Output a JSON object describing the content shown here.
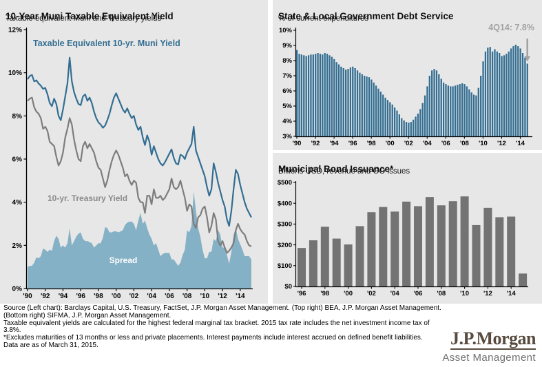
{
  "colors": {
    "panel_bg": "#e7e7e7",
    "muni_blue": "#336e92",
    "spread_fill": "#85b1c6",
    "treasury_gray": "#7d7d7d",
    "issuance_bar_gray": "#737373",
    "annotation_gray": "#a3a3a3",
    "axis": "#000000",
    "logo_brown": "#584a3e",
    "logo_division_gray": "#6e6e6e"
  },
  "left_chart": {
    "title": "10-Year Muni Taxable Equivalent Yield",
    "subtitle": "Taxable equivalent Muni and Treasury yields"
  },
  "top_right_chart": {
    "title": "State & Local Government Debt Service",
    "subtitle": "% of current expenditures",
    "annotation": "4Q14: 7.8%"
  },
  "bottom_right_chart": {
    "title": "Municipal Bond Issuance*",
    "subtitle": "Billions USD, revenue and GO issues"
  },
  "footer": {
    "lines": [
      "Source (Left chart): Barclays Capital, U.S. Treasury, FactSet, J.P. Morgan Asset Management. (Top right) BEA, J.P. Morgan Asset Management.",
      "(Bottom right) SIFMA, J.P. Morgan Asset Management.",
      "Taxable equivalent yields are calculated for the highest federal marginal tax bracket. 2015 tax rate includes the net investment income tax of 3.8%.",
      "*Excludes maturities of 13 months or less and private placements. Interest payments include interest accrued on defined benefit liabilities.",
      "Data are as of March 31, 2015."
    ]
  },
  "logo": {
    "brand": "J.P.Morgan",
    "division": "Asset Management"
  },
  "chart_data": [
    {
      "id": "taxable_equivalent_yield",
      "type": "line",
      "title": "10-Year Muni Taxable Equivalent Yield",
      "subtitle": "Taxable equivalent Muni and Treasury yields",
      "x_start": 1990,
      "x_step": 0.25,
      "xticks": [
        "'90",
        "'92",
        "'94",
        "'96",
        "'98",
        "'00",
        "'02",
        "'04",
        "'06",
        "'08",
        "'10",
        "'12",
        "'14"
      ],
      "xtick_years": [
        1990,
        1992,
        1994,
        1996,
        1998,
        2000,
        2002,
        2004,
        2006,
        2008,
        2010,
        2012,
        2014
      ],
      "ylim": [
        0,
        12
      ],
      "ytick_values": [
        0,
        2,
        4,
        6,
        8,
        10,
        12
      ],
      "yticks": [
        "0%",
        "2%",
        "4%",
        "6%",
        "8%",
        "10%",
        "12%"
      ],
      "grid": false,
      "series": [
        {
          "name": "Taxable Equivalent 10-yr. Muni Yield",
          "style": "line",
          "color": "#336e92",
          "values": [
            9.7,
            9.85,
            9.9,
            9.6,
            9.65,
            9.5,
            9.4,
            9.25,
            9.3,
            9.0,
            8.6,
            8.45,
            8.8,
            8.55,
            8.0,
            7.8,
            8.3,
            8.9,
            9.5,
            10.7,
            9.6,
            9.1,
            8.8,
            8.55,
            8.5,
            8.9,
            9.0,
            8.7,
            8.85,
            8.6,
            8.2,
            7.9,
            7.7,
            7.6,
            7.45,
            7.55,
            7.8,
            8.1,
            8.5,
            8.85,
            9.05,
            8.8,
            8.55,
            8.3,
            8.15,
            8.35,
            8.1,
            7.9,
            8.0,
            7.6,
            7.35,
            7.5,
            7.0,
            6.65,
            7.1,
            6.8,
            6.2,
            6.6,
            6.3,
            6.0,
            5.8,
            5.7,
            5.85,
            6.05,
            6.25,
            6.45,
            6.05,
            5.8,
            5.75,
            6.2,
            6.15,
            6.0,
            6.3,
            6.5,
            6.7,
            7.5,
            6.4,
            6.1,
            5.8,
            5.5,
            5.2,
            4.7,
            4.3,
            4.6,
            5.8,
            5.4,
            4.9,
            4.5,
            4.1,
            3.8,
            3.2,
            2.9,
            3.6,
            4.6,
            5.5,
            5.3,
            4.8,
            4.4,
            4.0,
            3.7,
            3.5,
            3.3
          ]
        },
        {
          "name": "10-yr. Treasury Yield",
          "style": "line",
          "color": "#7d7d7d",
          "values": [
            8.7,
            8.8,
            8.85,
            8.4,
            8.2,
            8.1,
            7.9,
            7.4,
            7.5,
            7.3,
            6.8,
            6.7,
            6.6,
            6.1,
            5.7,
            5.9,
            6.3,
            7.0,
            7.4,
            7.9,
            7.6,
            6.9,
            6.4,
            6.0,
            5.9,
            6.6,
            6.8,
            6.5,
            6.7,
            6.5,
            6.3,
            5.9,
            5.6,
            5.5,
            5.1,
            4.7,
            5.0,
            5.5,
            5.9,
            6.2,
            6.4,
            6.2,
            5.9,
            5.6,
            5.2,
            5.3,
            5.0,
            4.8,
            5.0,
            4.9,
            4.2,
            4.0,
            4.0,
            3.5,
            4.3,
            4.3,
            3.9,
            4.6,
            4.2,
            4.2,
            4.3,
            4.1,
            4.2,
            4.4,
            4.6,
            5.1,
            4.7,
            4.6,
            4.7,
            5.0,
            4.6,
            4.2,
            3.6,
            3.9,
            3.8,
            3.0,
            2.8,
            3.3,
            3.4,
            3.7,
            3.8,
            3.3,
            2.6,
            2.9,
            3.5,
            3.2,
            2.2,
            2.0,
            2.2,
            1.9,
            1.65,
            1.75,
            1.9,
            2.1,
            2.7,
            3.0,
            2.75,
            2.6,
            2.5,
            2.2,
            2.0,
            1.95
          ]
        },
        {
          "name": "Spread",
          "style": "area",
          "color": "#85b1c6",
          "derived": "muni_minus_treasury"
        }
      ]
    },
    {
      "id": "debt_service",
      "type": "bar",
      "title": "State & Local Government Debt Service",
      "subtitle": "% of current expenditures",
      "bar_color": "#336e92",
      "x_start": 1990,
      "x_step": 0.25,
      "xticks": [
        "'90",
        "'92",
        "'94",
        "'96",
        "'98",
        "'00",
        "'02",
        "'04",
        "'06",
        "'08",
        "'10",
        "'12",
        "'14"
      ],
      "xtick_years": [
        1990,
        1992,
        1994,
        1996,
        1998,
        2000,
        2002,
        2004,
        2006,
        2008,
        2010,
        2012,
        2014
      ],
      "ylim": [
        3,
        10
      ],
      "ytick_values": [
        3,
        4,
        5,
        6,
        7,
        8,
        9,
        10
      ],
      "yticks": [
        "3%",
        "4%",
        "5%",
        "6%",
        "7%",
        "8%",
        "9%",
        "10%"
      ],
      "grid": false,
      "annotation": {
        "text": "4Q14: 7.8%",
        "value": 7.8
      },
      "values": [
        8.7,
        8.45,
        8.4,
        8.35,
        8.3,
        8.35,
        8.4,
        8.4,
        8.45,
        8.5,
        8.45,
        8.4,
        8.5,
        8.45,
        8.35,
        8.25,
        8.1,
        7.9,
        7.75,
        7.6,
        7.5,
        7.4,
        7.45,
        7.55,
        7.6,
        7.5,
        7.35,
        7.2,
        7.1,
        7.0,
        6.95,
        6.9,
        6.75,
        6.55,
        6.35,
        6.15,
        5.95,
        5.75,
        5.55,
        5.4,
        5.25,
        5.1,
        4.9,
        4.7,
        4.45,
        4.2,
        4.05,
        3.95,
        3.9,
        3.95,
        4.1,
        4.3,
        4.5,
        4.8,
        5.2,
        5.7,
        6.3,
        7.0,
        7.35,
        7.45,
        7.35,
        7.1,
        6.8,
        6.55,
        6.45,
        6.35,
        6.3,
        6.3,
        6.35,
        6.4,
        6.45,
        6.5,
        6.45,
        6.3,
        6.1,
        5.9,
        5.75,
        5.7,
        6.2,
        7.0,
        7.95,
        8.6,
        8.85,
        8.9,
        8.6,
        8.75,
        8.6,
        8.5,
        8.3,
        8.35,
        8.45,
        8.6,
        8.8,
        8.95,
        9.05,
        8.95,
        8.8,
        8.5,
        8.2,
        7.8
      ]
    },
    {
      "id": "municipal_bond_issuance",
      "type": "bar",
      "title": "Municipal Bond Issuance*",
      "subtitle": "Billions USD, revenue and GO issues",
      "bar_color": "#737373",
      "categories": [
        1996,
        1997,
        1998,
        1999,
        2000,
        2001,
        2002,
        2003,
        2004,
        2005,
        2006,
        2007,
        2008,
        2009,
        2010,
        2011,
        2012,
        2013,
        2014,
        2015
      ],
      "xticks": [
        "'96",
        "'98",
        "'00",
        "'02",
        "'04",
        "'06",
        "'08",
        "'10",
        "'12",
        "'14"
      ],
      "xtick_years": [
        1996,
        1998,
        2000,
        2002,
        2004,
        2006,
        2008,
        2010,
        2012,
        2014
      ],
      "ylim": [
        0,
        500
      ],
      "ytick_values": [
        0,
        100,
        200,
        300,
        400,
        500
      ],
      "yticks": [
        "$0",
        "$100",
        "$200",
        "$300",
        "$400",
        "$500"
      ],
      "grid": false,
      "values": [
        185,
        222,
        287,
        230,
        202,
        290,
        357,
        382,
        360,
        408,
        386,
        430,
        390,
        410,
        433,
        295,
        378,
        333,
        336,
        62
      ]
    }
  ]
}
